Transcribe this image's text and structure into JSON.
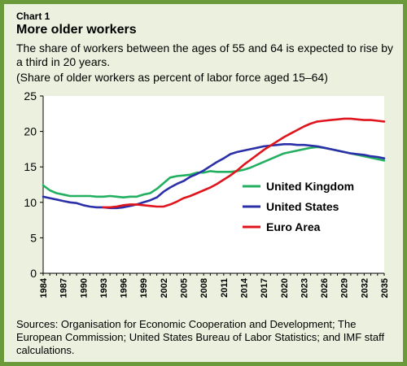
{
  "header": {
    "chart_number": "Chart 1",
    "title": "More older workers",
    "subtitle": "The share of workers between the ages of 55 and 64 is expected to rise by a third in 20 years.",
    "note": "(Share of older workers as percent of labor force aged 15–64)"
  },
  "footer": {
    "sources": "Sources: Organisation for Economic Cooperation and Development; The European Commission; United States Bureau of Labor Statistics; and IMF staff calculations."
  },
  "colors": {
    "frame": "#6a9a3a",
    "background": "#ecf1df",
    "uk": "#22b060",
    "us": "#2b2fa8",
    "ea": "#e0141c"
  },
  "chart_data": {
    "type": "line",
    "title": "More older workers",
    "xlabel": "",
    "ylabel": "",
    "ylim": [
      0,
      25
    ],
    "yticks": [
      0,
      5,
      10,
      15,
      20,
      25
    ],
    "xlim": [
      1984,
      2035
    ],
    "xticks": [
      "1984",
      "1987",
      "1990",
      "1993",
      "1996",
      "1999",
      "2002",
      "2005",
      "2008",
      "2011",
      "2014",
      "2017",
      "2020",
      "2023",
      "2026",
      "2029",
      "2032",
      "2035"
    ],
    "grid": false,
    "legend_position": "right-middle",
    "series": [
      {
        "name": "United Kingdom",
        "color": "#22b060",
        "x": [
          1984,
          1985,
          1986,
          1987,
          1988,
          1989,
          1990,
          1991,
          1992,
          1993,
          1994,
          1995,
          1996,
          1997,
          1998,
          1999,
          2000,
          2001,
          2002,
          2003,
          2004,
          2005,
          2006,
          2007,
          2008,
          2009,
          2010,
          2011,
          2012,
          2013,
          2014,
          2015,
          2016,
          2017,
          2018,
          2019,
          2020,
          2021,
          2022,
          2023,
          2024,
          2025,
          2026,
          2027,
          2028,
          2029,
          2030,
          2031,
          2032,
          2033,
          2034,
          2035
        ],
        "values": [
          12.4,
          11.7,
          11.3,
          11.1,
          10.9,
          10.9,
          10.9,
          10.9,
          10.8,
          10.8,
          10.9,
          10.8,
          10.7,
          10.8,
          10.8,
          11.1,
          11.3,
          11.9,
          12.7,
          13.5,
          13.7,
          13.8,
          13.9,
          14.2,
          14.2,
          14.4,
          14.3,
          14.3,
          14.3,
          14.4,
          14.6,
          14.9,
          15.3,
          15.7,
          16.1,
          16.5,
          16.9,
          17.1,
          17.3,
          17.5,
          17.7,
          17.8,
          17.7,
          17.5,
          17.3,
          17.1,
          16.9,
          16.7,
          16.5,
          16.3,
          16.1,
          15.9
        ]
      },
      {
        "name": "United States",
        "color": "#2b2fa8",
        "x": [
          1984,
          1985,
          1986,
          1987,
          1988,
          1989,
          1990,
          1991,
          1992,
          1993,
          1994,
          1995,
          1996,
          1997,
          1998,
          1999,
          2000,
          2001,
          2002,
          2003,
          2004,
          2005,
          2006,
          2007,
          2008,
          2009,
          2010,
          2011,
          2012,
          2013,
          2014,
          2015,
          2016,
          2017,
          2018,
          2019,
          2020,
          2021,
          2022,
          2023,
          2024,
          2025,
          2026,
          2027,
          2028,
          2029,
          2030,
          2031,
          2032,
          2033,
          2034,
          2035
        ],
        "values": [
          10.8,
          10.6,
          10.4,
          10.2,
          10.0,
          9.9,
          9.6,
          9.4,
          9.3,
          9.3,
          9.2,
          9.2,
          9.3,
          9.5,
          9.7,
          10.0,
          10.3,
          10.7,
          11.5,
          12.1,
          12.6,
          13.0,
          13.6,
          14.0,
          14.5,
          15.1,
          15.7,
          16.2,
          16.8,
          17.1,
          17.3,
          17.5,
          17.7,
          17.9,
          18.0,
          18.1,
          18.2,
          18.2,
          18.1,
          18.1,
          18.0,
          17.9,
          17.7,
          17.5,
          17.3,
          17.1,
          16.9,
          16.8,
          16.7,
          16.5,
          16.4,
          16.2
        ]
      },
      {
        "name": "Euro Area",
        "color": "#e0141c",
        "x": [
          1993,
          1994,
          1995,
          1996,
          1997,
          1998,
          1999,
          2000,
          2001,
          2002,
          2003,
          2004,
          2005,
          2006,
          2007,
          2008,
          2009,
          2010,
          2011,
          2012,
          2013,
          2014,
          2015,
          2016,
          2017,
          2018,
          2019,
          2020,
          2021,
          2022,
          2023,
          2024,
          2025,
          2026,
          2027,
          2028,
          2029,
          2030,
          2031,
          2032,
          2033,
          2034,
          2035
        ],
        "values": [
          9.3,
          9.3,
          9.4,
          9.6,
          9.7,
          9.7,
          9.6,
          9.5,
          9.4,
          9.4,
          9.7,
          10.1,
          10.6,
          10.9,
          11.3,
          11.7,
          12.1,
          12.6,
          13.2,
          13.8,
          14.5,
          15.3,
          16.0,
          16.7,
          17.4,
          18.0,
          18.6,
          19.2,
          19.7,
          20.2,
          20.7,
          21.1,
          21.4,
          21.5,
          21.6,
          21.7,
          21.8,
          21.8,
          21.7,
          21.6,
          21.6,
          21.5,
          21.4
        ]
      }
    ]
  }
}
